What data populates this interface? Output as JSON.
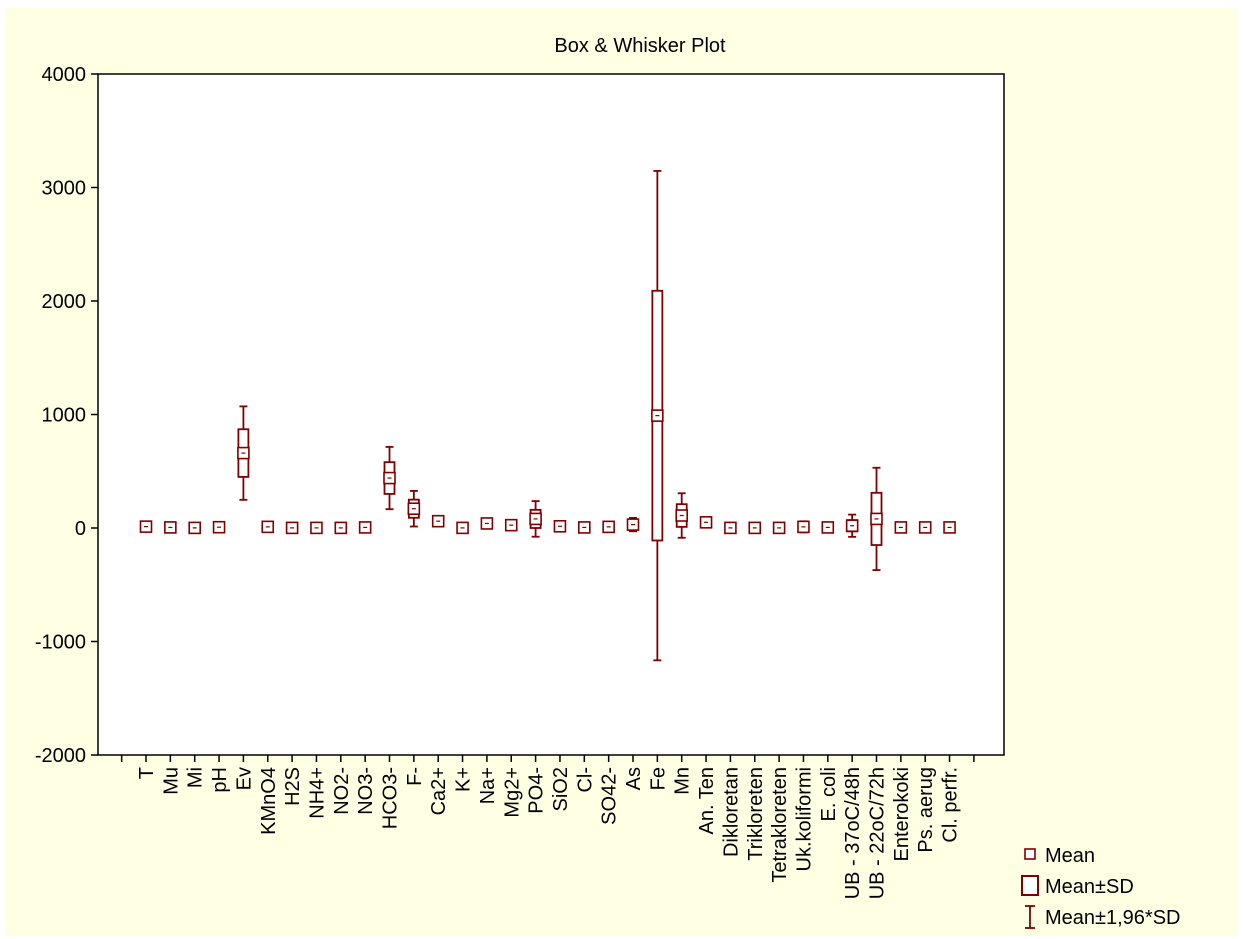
{
  "chart_data": {
    "type": "box-whisker",
    "title": "Box & Whisker Plot",
    "ylim": [
      -2000,
      4000
    ],
    "yticks": [
      "4000",
      "3000",
      "2000",
      "1000",
      "0",
      "-1000",
      "-2000"
    ],
    "ytick_values": [
      4000,
      3000,
      2000,
      1000,
      0,
      -1000,
      -2000
    ],
    "grid": true,
    "legend_position": "bottom-right",
    "legend": [
      {
        "label": "Mean"
      },
      {
        "label": "Mean±SD"
      },
      {
        "label": "Mean±1,96*SD"
      }
    ],
    "colors": {
      "series": "#800000",
      "grid": "#C8C8C8",
      "plot_bg": "#FFFFFF",
      "outer_bg": "#FFFFE4",
      "axis": "#000000"
    },
    "categories": [
      "T",
      "Mu",
      "Mi",
      "pH",
      "Ev",
      "KMnO4",
      "H2S",
      "NH4+",
      "NO2-",
      "NO3-",
      "HCO3-",
      "F-",
      "Ca2+",
      "K+",
      "Na+",
      "Mg2+",
      "PO4-",
      "SiO2",
      "Cl-",
      "SO42-",
      "As",
      "Fe",
      "Mn",
      "An. Ten",
      "Dikloretan",
      "Trikloreten",
      "Tetrakloreten",
      "Uk.koliformi",
      "E. coli",
      "UB - 37oC/48h",
      "UB - 22oC/72h",
      "Enterokoki",
      "Ps. aerug",
      "Cl. perfr."
    ],
    "mean": [
      12,
      5,
      1,
      7,
      660,
      10,
      1,
      1,
      1,
      5,
      440,
      170,
      60,
      1,
      40,
      25,
      80,
      15,
      5,
      10,
      30,
      990,
      110,
      50,
      1,
      1,
      1,
      10,
      5,
      20,
      80,
      5,
      5,
      5
    ],
    "sd": [
      3,
      3,
      1,
      1,
      210,
      12,
      0,
      1,
      1,
      3,
      140,
      80,
      15,
      0,
      22,
      8,
      80,
      10,
      7,
      7,
      30,
      1100,
      100,
      5,
      0,
      0,
      0,
      25,
      7,
      50,
      230,
      8,
      8,
      8
    ]
  }
}
